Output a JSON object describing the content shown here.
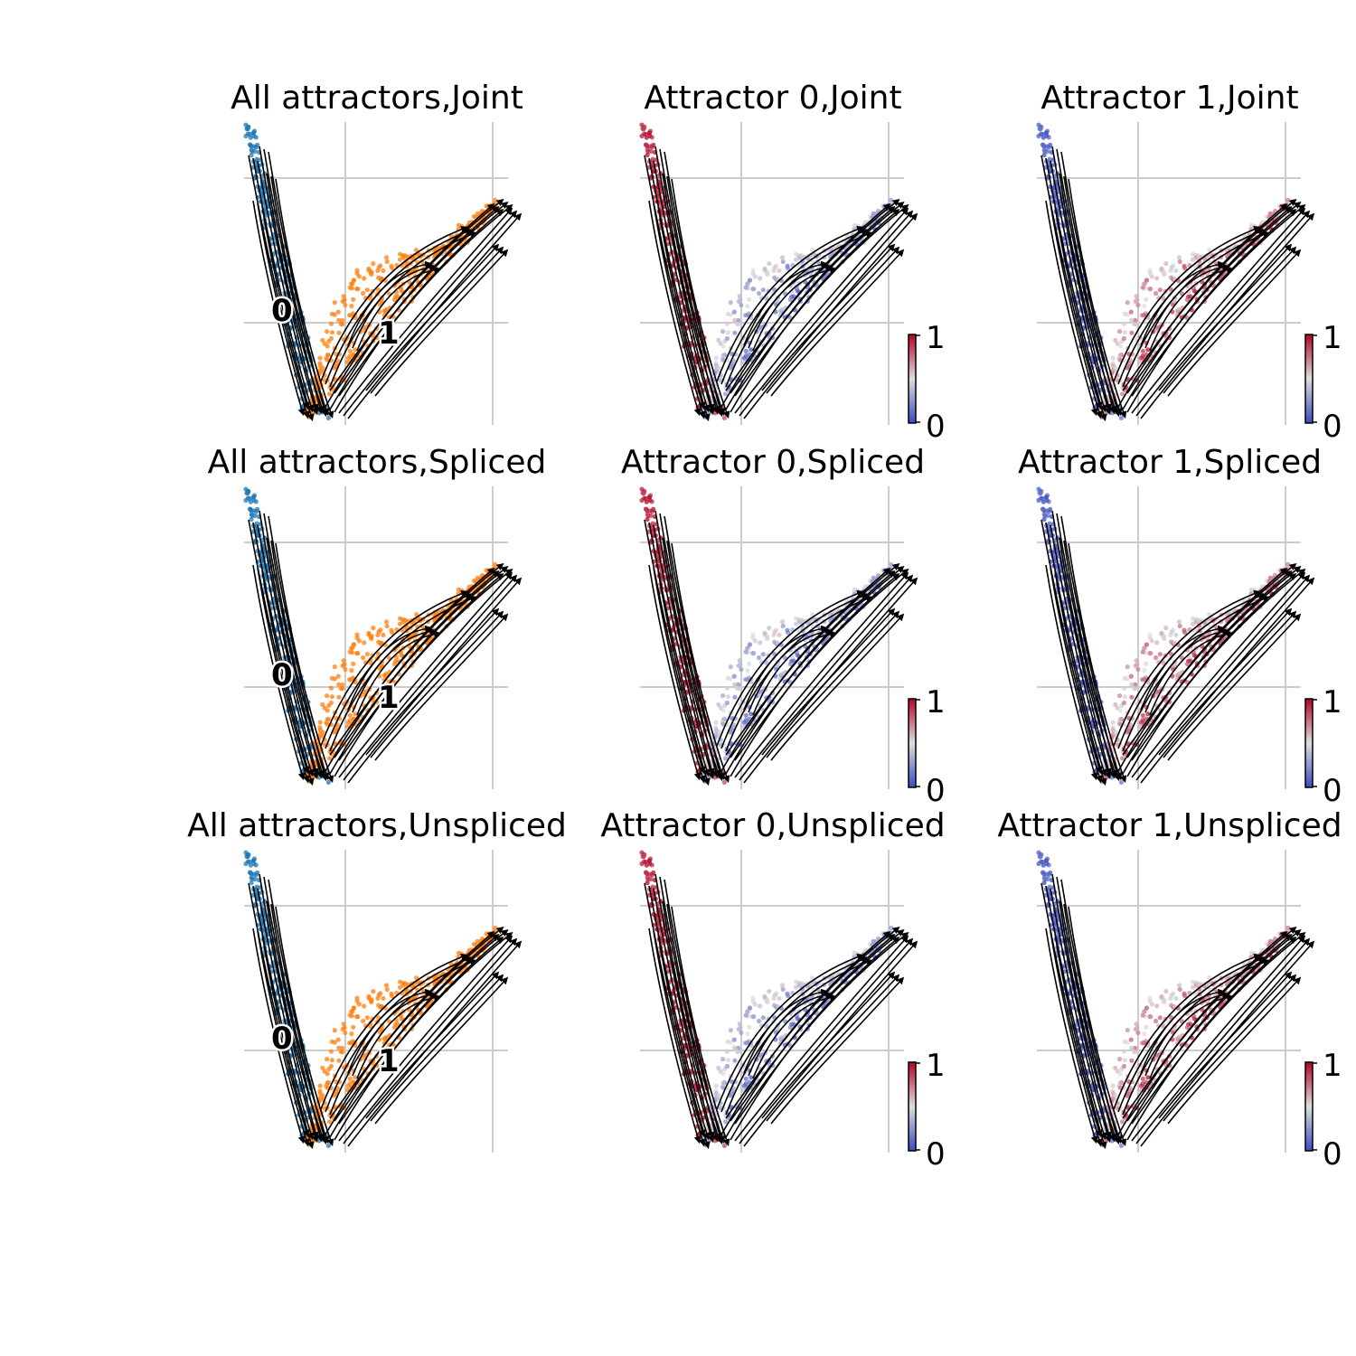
{
  "figure": {
    "colors": {
      "attractor_0": "#1f77b4",
      "attractor_1": "#ff7f0e",
      "cmap_low": "#3b4cc0",
      "cmap_mid": "#dddddd",
      "cmap_high": "#b40426",
      "stream": "#000000",
      "grid": "#cccccc"
    }
  },
  "chart_data": [
    {
      "type": "scatter",
      "title": "All attractors,Joint",
      "mode": "clusters",
      "clusters": [
        "0",
        "1"
      ],
      "colorbar": null
    },
    {
      "type": "scatter",
      "title": "Attractor 0,Joint",
      "mode": "prob",
      "target": 0,
      "colorbar": {
        "min": "0",
        "max": "1"
      }
    },
    {
      "type": "scatter",
      "title": "Attractor 1,Joint",
      "mode": "prob",
      "target": 1,
      "colorbar": {
        "min": "0",
        "max": "1"
      }
    },
    {
      "type": "scatter",
      "title": "All attractors,Spliced",
      "mode": "clusters",
      "clusters": [
        "0",
        "1"
      ],
      "colorbar": null
    },
    {
      "type": "scatter",
      "title": "Attractor 0,Spliced",
      "mode": "prob",
      "target": 0,
      "colorbar": {
        "min": "0",
        "max": "1"
      }
    },
    {
      "type": "scatter",
      "title": "Attractor 1,Spliced",
      "mode": "prob",
      "target": 1,
      "colorbar": {
        "min": "0",
        "max": "1"
      }
    },
    {
      "type": "scatter",
      "title": "All attractors,Unspliced",
      "mode": "clusters",
      "clusters": [
        "0",
        "1"
      ],
      "colorbar": null
    },
    {
      "type": "scatter",
      "title": "Attractor 0,Unspliced",
      "mode": "prob",
      "target": 0,
      "colorbar": {
        "min": "0",
        "max": "1"
      }
    },
    {
      "type": "scatter",
      "title": "Attractor 1,Unspliced",
      "mode": "prob",
      "target": 1,
      "colorbar": {
        "min": "0",
        "max": "1"
      }
    }
  ]
}
